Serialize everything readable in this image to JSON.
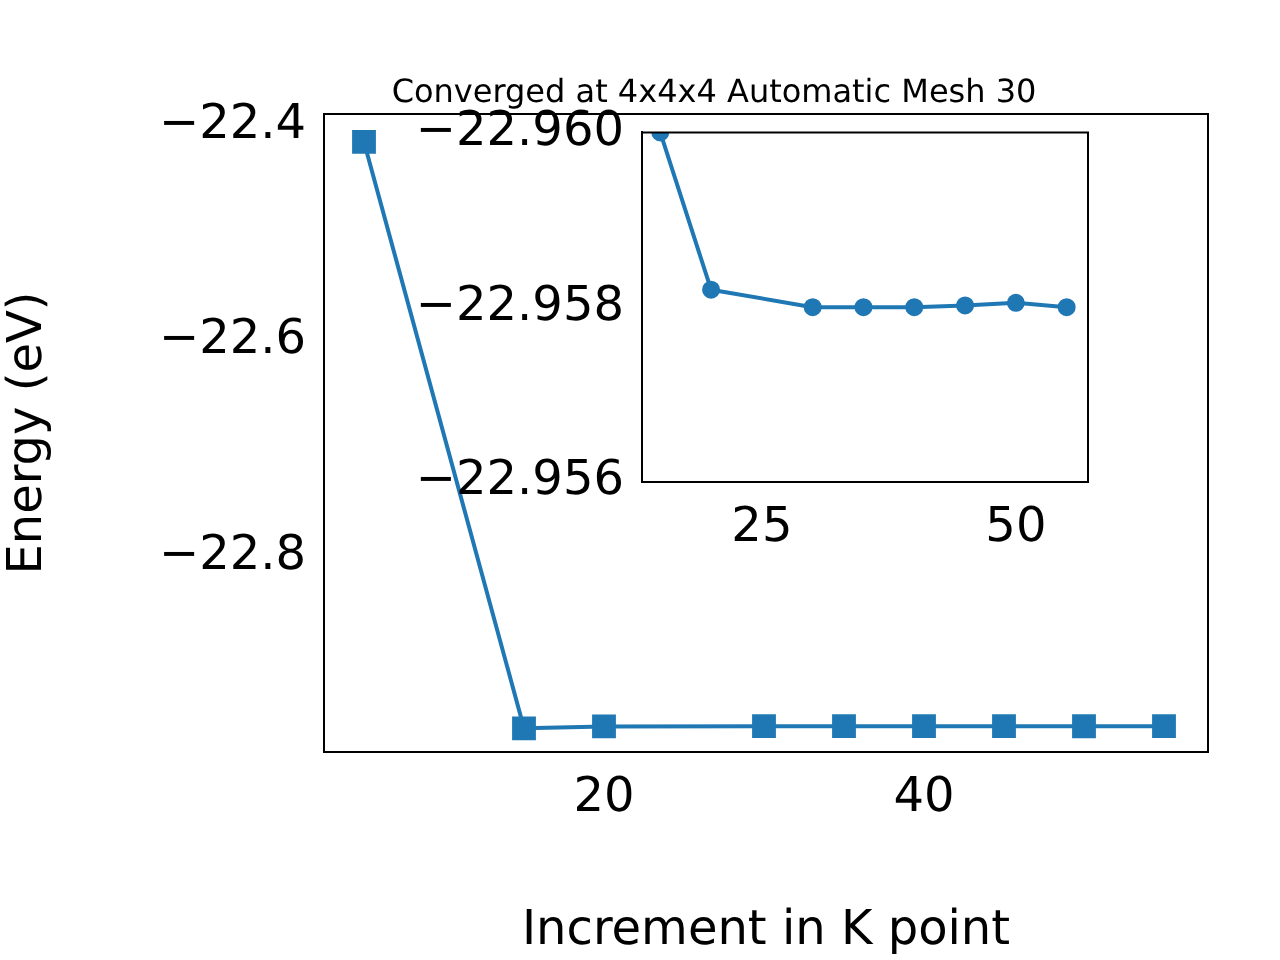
{
  "chart_data": [
    {
      "type": "line",
      "xlabel": "Increment in K point",
      "ylabel": "Energy (eV)",
      "color": "#1f77b4",
      "marker": "square",
      "line_style": "solid",
      "grid": false,
      "legend": false,
      "x": [
        5,
        15,
        20,
        30,
        35,
        40,
        45,
        50,
        55
      ],
      "values": [
        -22.415,
        -22.96,
        -22.9582,
        -22.958,
        -22.958,
        -22.958,
        -22.95802,
        -22.95805,
        -22.958
      ],
      "xlim": [
        2.5,
        57.75
      ],
      "xticks": [
        20,
        40
      ],
      "ylim": [
        -22.982,
        -22.389
      ],
      "yticks": [
        {
          "value": -22.4,
          "label": "−22.4"
        },
        {
          "value": -22.6,
          "label": "−22.6"
        },
        {
          "value": -22.8,
          "label": "−22.8"
        }
      ]
    },
    {
      "type": "line",
      "title": "Converged at 4x4x4 Automatic Mesh 30",
      "color": "#1f77b4",
      "marker": "circle",
      "line_style": "solid",
      "grid": false,
      "legend": false,
      "x": [
        15,
        20,
        30,
        35,
        40,
        45,
        50,
        55
      ],
      "values": [
        -22.96,
        -22.9582,
        -22.958,
        -22.958,
        -22.958,
        -22.95802,
        -22.95805,
        -22.958
      ],
      "xlim": [
        13.2,
        57.1
      ],
      "xticks": [
        25,
        50
      ],
      "ylim": [
        -22.956,
        -22.96
      ],
      "yticks": [
        {
          "value": -22.96,
          "label": "−22.960"
        },
        {
          "value": -22.958,
          "label": "−22.958"
        },
        {
          "value": -22.956,
          "label": "−22.956"
        }
      ]
    }
  ]
}
